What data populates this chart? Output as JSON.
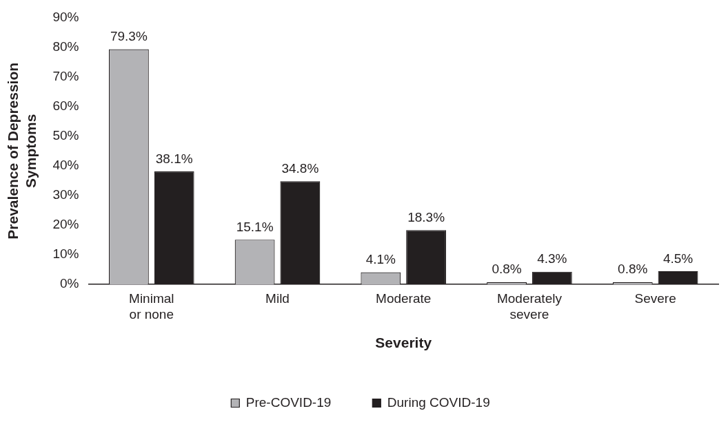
{
  "chart_data": {
    "type": "bar",
    "xlabel": "Severity",
    "ylabel": "Prevalence of Depression Symptoms",
    "categories": [
      "Minimal or none",
      "Mild",
      "Moderate",
      "Moderately severe",
      "Severe"
    ],
    "series": [
      {
        "name": "Pre-COVID-19",
        "color": "#b3b3b6",
        "values": [
          79.3,
          15.1,
          4.1,
          0.8,
          0.8
        ],
        "value_labels": [
          "79.3%",
          "15.1%",
          "4.1%",
          "0.8%",
          "0.8%"
        ]
      },
      {
        "name": "During COVID-19",
        "color": "#231f20",
        "values": [
          38.1,
          34.8,
          18.3,
          4.3,
          4.5
        ],
        "value_labels": [
          "38.1%",
          "34.8%",
          "18.3%",
          "4.3%",
          "4.5%"
        ]
      }
    ],
    "ylim": [
      0,
      90
    ],
    "yticks": [
      {
        "value": 0,
        "label": "0%"
      },
      {
        "value": 10,
        "label": "10%"
      },
      {
        "value": 20,
        "label": "20%"
      },
      {
        "value": 30,
        "label": "30%"
      },
      {
        "value": 40,
        "label": "40%"
      },
      {
        "value": 50,
        "label": "50%"
      },
      {
        "value": 60,
        "label": "60%"
      },
      {
        "value": 70,
        "label": "70%"
      },
      {
        "value": 80,
        "label": "80%"
      },
      {
        "value": 90,
        "label": "90%"
      }
    ],
    "grid": false,
    "legend": "bottom"
  }
}
